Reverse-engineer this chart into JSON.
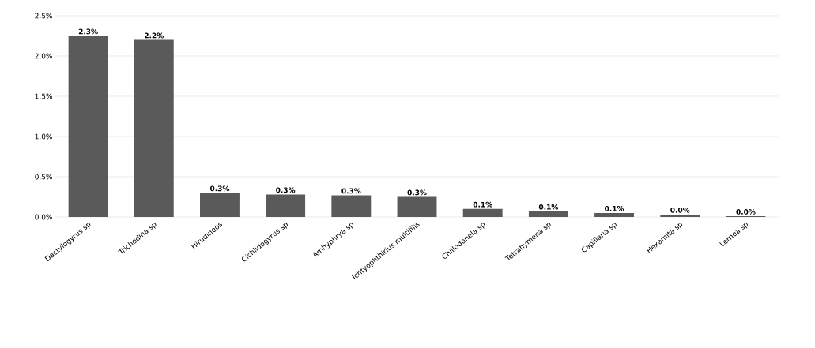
{
  "chart_data": {
    "type": "bar",
    "categories": [
      "Dactylogyrus sp",
      "Trichodina sp",
      "Hirudineos",
      "Cichlidogyrus sp",
      "Ambyphrya sp",
      "Ichtyophthirius multifilis",
      "Chillodonela sp",
      "Tetrahymena sp",
      "Capillaria sp",
      "Hexamita sp",
      "Lernea sp"
    ],
    "values": [
      2.25,
      2.2,
      0.3,
      0.28,
      0.27,
      0.25,
      0.1,
      0.07,
      0.05,
      0.03,
      0.01
    ],
    "value_labels": [
      "2.3%",
      "2.2%",
      "0.3%",
      "0.3%",
      "0.3%",
      "0.3%",
      "0.1%",
      "0.1%",
      "0.1%",
      "0.0%",
      "0.0%"
    ],
    "color": "#5a5a5a",
    "ylim": [
      0,
      2.5
    ],
    "yticks": [
      {
        "value": 0,
        "label": "0.0%"
      },
      {
        "value": 0.5,
        "label": "0.5%"
      },
      {
        "value": 1,
        "label": "1.0%"
      },
      {
        "value": 1.5,
        "label": "1.5%"
      },
      {
        "value": 2,
        "label": "2.0%"
      },
      {
        "value": 2.5,
        "label": "2.5%"
      }
    ],
    "grid": "y"
  }
}
